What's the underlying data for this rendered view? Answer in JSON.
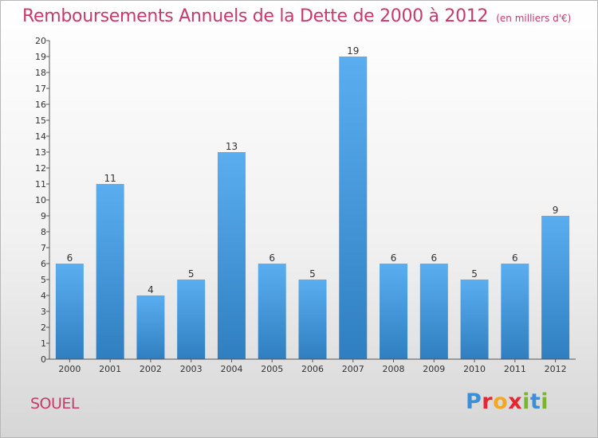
{
  "header": {
    "title": "Remboursements Annuels de la Dette de 2000 à 2012",
    "subtitle": "(en milliers d'€)"
  },
  "footer": {
    "location": "SOUEL",
    "brand": "Proxiti"
  },
  "colors": {
    "title": "#c73a6a",
    "bar_light": "#5aaef0",
    "bar_dark": "#2f7fc0",
    "brand_letters": [
      "#3a8fd8",
      "#e8262f",
      "#f5a623",
      "#e8262f",
      "#79b72a",
      "#3a8fd8",
      "#79b72a"
    ]
  },
  "chart_data": {
    "type": "bar",
    "categories": [
      "2000",
      "2001",
      "2002",
      "2003",
      "2004",
      "2005",
      "2006",
      "2007",
      "2008",
      "2009",
      "2010",
      "2011",
      "2012"
    ],
    "values": [
      6,
      11,
      4,
      5,
      13,
      6,
      5,
      19,
      6,
      6,
      5,
      6,
      9
    ],
    "data_labels": [
      "6",
      "11",
      "4",
      "5",
      "13",
      "6",
      "5",
      "19",
      "6",
      "6",
      "5",
      "6",
      "9"
    ],
    "ylim": [
      0,
      20
    ],
    "yticks": [
      "0",
      "1",
      "2",
      "3",
      "4",
      "5",
      "6",
      "7",
      "8",
      "9",
      "10",
      "11",
      "12",
      "13",
      "14",
      "15",
      "16",
      "17",
      "18",
      "19",
      "20"
    ],
    "grid": false,
    "xlabel": "",
    "ylabel": ""
  }
}
